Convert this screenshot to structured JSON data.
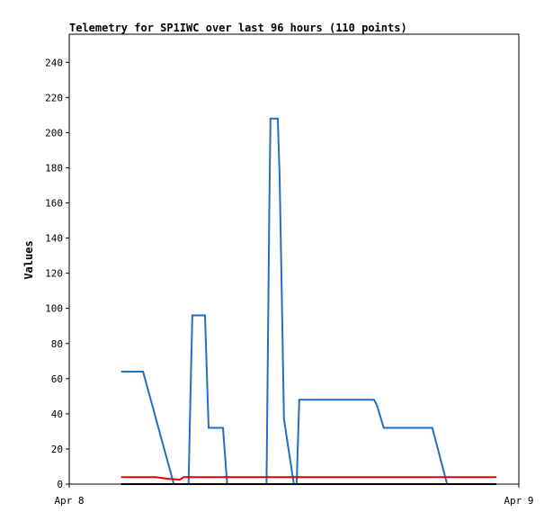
{
  "chart_data": {
    "type": "line",
    "title": "Telemetry for SP1IWC over last 96 hours (110 points)",
    "xlabel": "",
    "ylabel": "Values",
    "x_tick_labels": [
      "Apr 8",
      "Apr 9"
    ],
    "xlim": [
      0,
      24
    ],
    "ylim": [
      0,
      256
    ],
    "y_ticks": [
      0,
      20,
      40,
      60,
      80,
      100,
      120,
      140,
      160,
      180,
      200,
      220,
      240
    ],
    "grid": false,
    "legend": "none",
    "series": [
      {
        "color": "#1f6fc5",
        "x": [
          2.77,
          3.94,
          5.58,
          5.9,
          6.37,
          6.47,
          6.57,
          7.25,
          7.44,
          7.59,
          8.21,
          8.43,
          8.62,
          10.53,
          10.68,
          10.74,
          11.13,
          11.23,
          11.35,
          11.46,
          11.99,
          12.14,
          12.28,
          14.14,
          14.52,
          15.02,
          15.13,
          15.3,
          16.01,
          16.27,
          16.42,
          16.79,
          16.95,
          17.14,
          19.38,
          20.17
        ],
        "y": [
          64,
          64,
          0,
          0,
          0,
          50,
          96,
          96,
          32,
          32,
          32,
          0,
          0,
          0,
          156,
          208,
          208,
          175,
          104,
          37,
          0,
          0,
          48,
          48,
          48,
          48,
          48,
          48,
          48,
          48,
          45,
          32,
          32,
          32,
          32,
          0
        ]
      },
      {
        "color": "#e00000",
        "x": [
          2.77,
          4.6,
          5.3,
          5.9,
          6.1,
          20.17,
          22.8
        ],
        "y": [
          4,
          4,
          3,
          2.5,
          4,
          4,
          4
        ]
      },
      {
        "color": "#000000",
        "x": [
          2.77,
          22.8
        ],
        "y": [
          0,
          0
        ]
      }
    ]
  }
}
